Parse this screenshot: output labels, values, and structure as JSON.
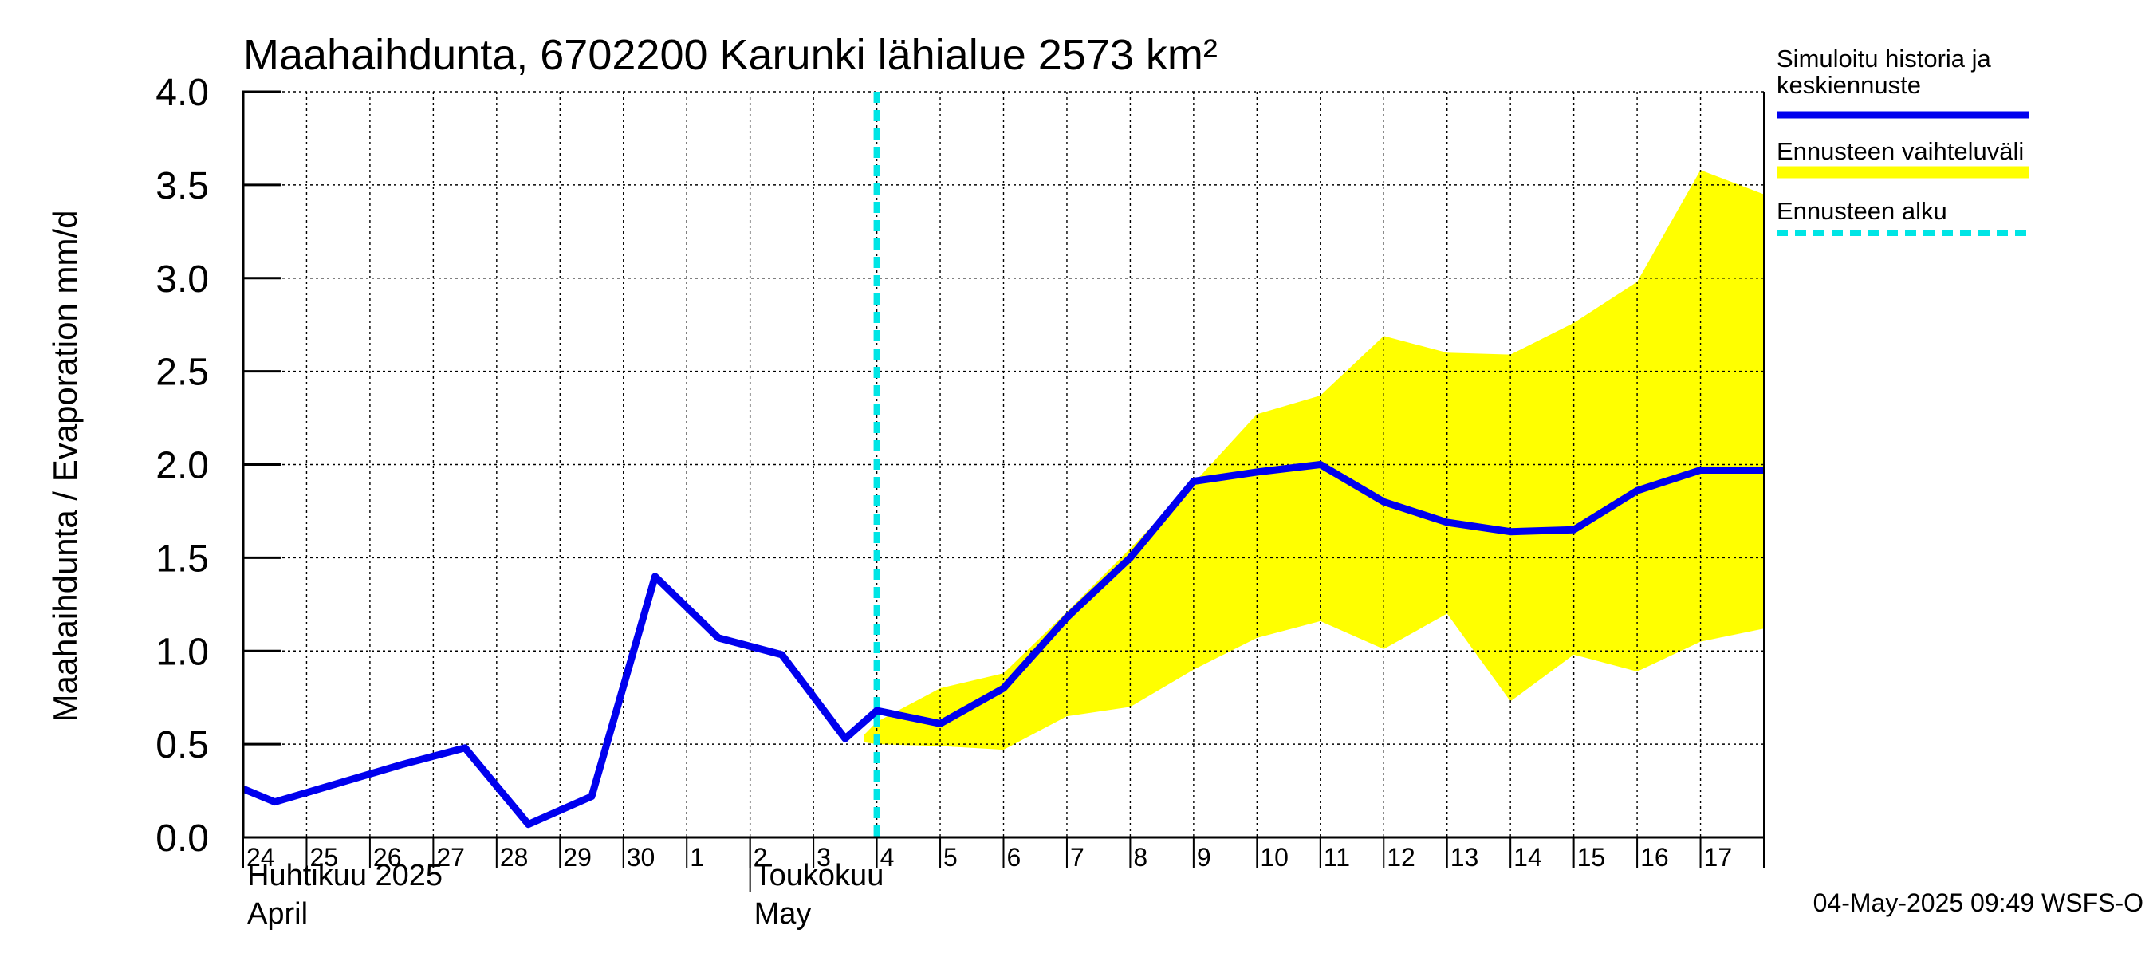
{
  "chart_data": {
    "type": "line",
    "title": "Maahaihdunta, 6702200 Karunki lähialue 2573 km²",
    "ylabel": "Maahaihdunta / Evaporation   mm/d",
    "xlabel": "",
    "ylim": [
      0,
      4
    ],
    "yticks": [
      "0.0",
      "0.5",
      "1.0",
      "1.5",
      "2.0",
      "2.5",
      "3.0",
      "3.5",
      "4.0"
    ],
    "x_day_index_range": [
      0,
      24
    ],
    "grid": true,
    "categories": [
      "24",
      "25",
      "26",
      "27",
      "28",
      "29",
      "30",
      "1",
      "2",
      "3",
      "4",
      "5",
      "6",
      "7",
      "8",
      "9",
      "10",
      "11",
      "12",
      "13",
      "14",
      "15",
      "16",
      "17"
    ],
    "month_labels": [
      {
        "line1": "Huhtikuu  2025",
        "line2": "April",
        "start_day_index": 0
      },
      {
        "line1": "Toukokuu",
        "line2": "May",
        "start_day_index": 8
      }
    ],
    "series": [
      {
        "name": "Simuloitu historia ja keskiennuste",
        "color": "#0000ee",
        "x": [
          0,
          0.5,
          1.5,
          2.5,
          3.5,
          4.5,
          5.5,
          6.5,
          7.5,
          8.5,
          9.5,
          10,
          11,
          12,
          13,
          14,
          15,
          16,
          17,
          18,
          19,
          20,
          21,
          22,
          23,
          24
        ],
        "values": [
          0.26,
          0.19,
          0.29,
          0.39,
          0.48,
          0.07,
          0.22,
          1.4,
          1.07,
          0.98,
          0.53,
          0.68,
          0.61,
          0.8,
          1.18,
          1.5,
          1.91,
          1.96,
          2.0,
          1.8,
          1.69,
          1.64,
          1.65,
          1.86,
          1.97,
          1.97
        ]
      }
    ],
    "band": {
      "name": "Ennusteen vaihteluväli",
      "color": "#ffff00",
      "x": [
        9.8,
        10,
        11,
        12,
        13,
        14,
        15,
        16,
        17,
        18,
        19,
        20,
        21,
        22,
        23,
        24
      ],
      "upper": [
        0.55,
        0.62,
        0.8,
        0.88,
        1.21,
        1.55,
        1.9,
        2.27,
        2.37,
        2.69,
        2.6,
        2.59,
        2.76,
        2.98,
        3.58,
        3.45
      ],
      "lower": [
        0.51,
        0.5,
        0.49,
        0.47,
        0.65,
        0.7,
        0.9,
        1.07,
        1.16,
        1.01,
        1.2,
        0.73,
        0.98,
        0.89,
        1.05,
        1.12
      ]
    },
    "forecast_start": {
      "name": "Ennusteen alku",
      "x": 10,
      "color": "#00e5e5"
    },
    "legend_position": "right"
  },
  "legend": {
    "items": [
      {
        "label_lines": [
          "Simuloitu historia ja",
          "keskiennuste"
        ],
        "color": "#0000ee",
        "style": "solid"
      },
      {
        "label_lines": [
          "Ennusteen vaihteluväli"
        ],
        "color": "#ffff00",
        "style": "thick"
      },
      {
        "label_lines": [
          "Ennusteen alku"
        ],
        "color": "#00e5e5",
        "style": "dashed"
      }
    ]
  },
  "footer": {
    "timestamp": "04-May-2025 09:49 WSFS-O"
  }
}
